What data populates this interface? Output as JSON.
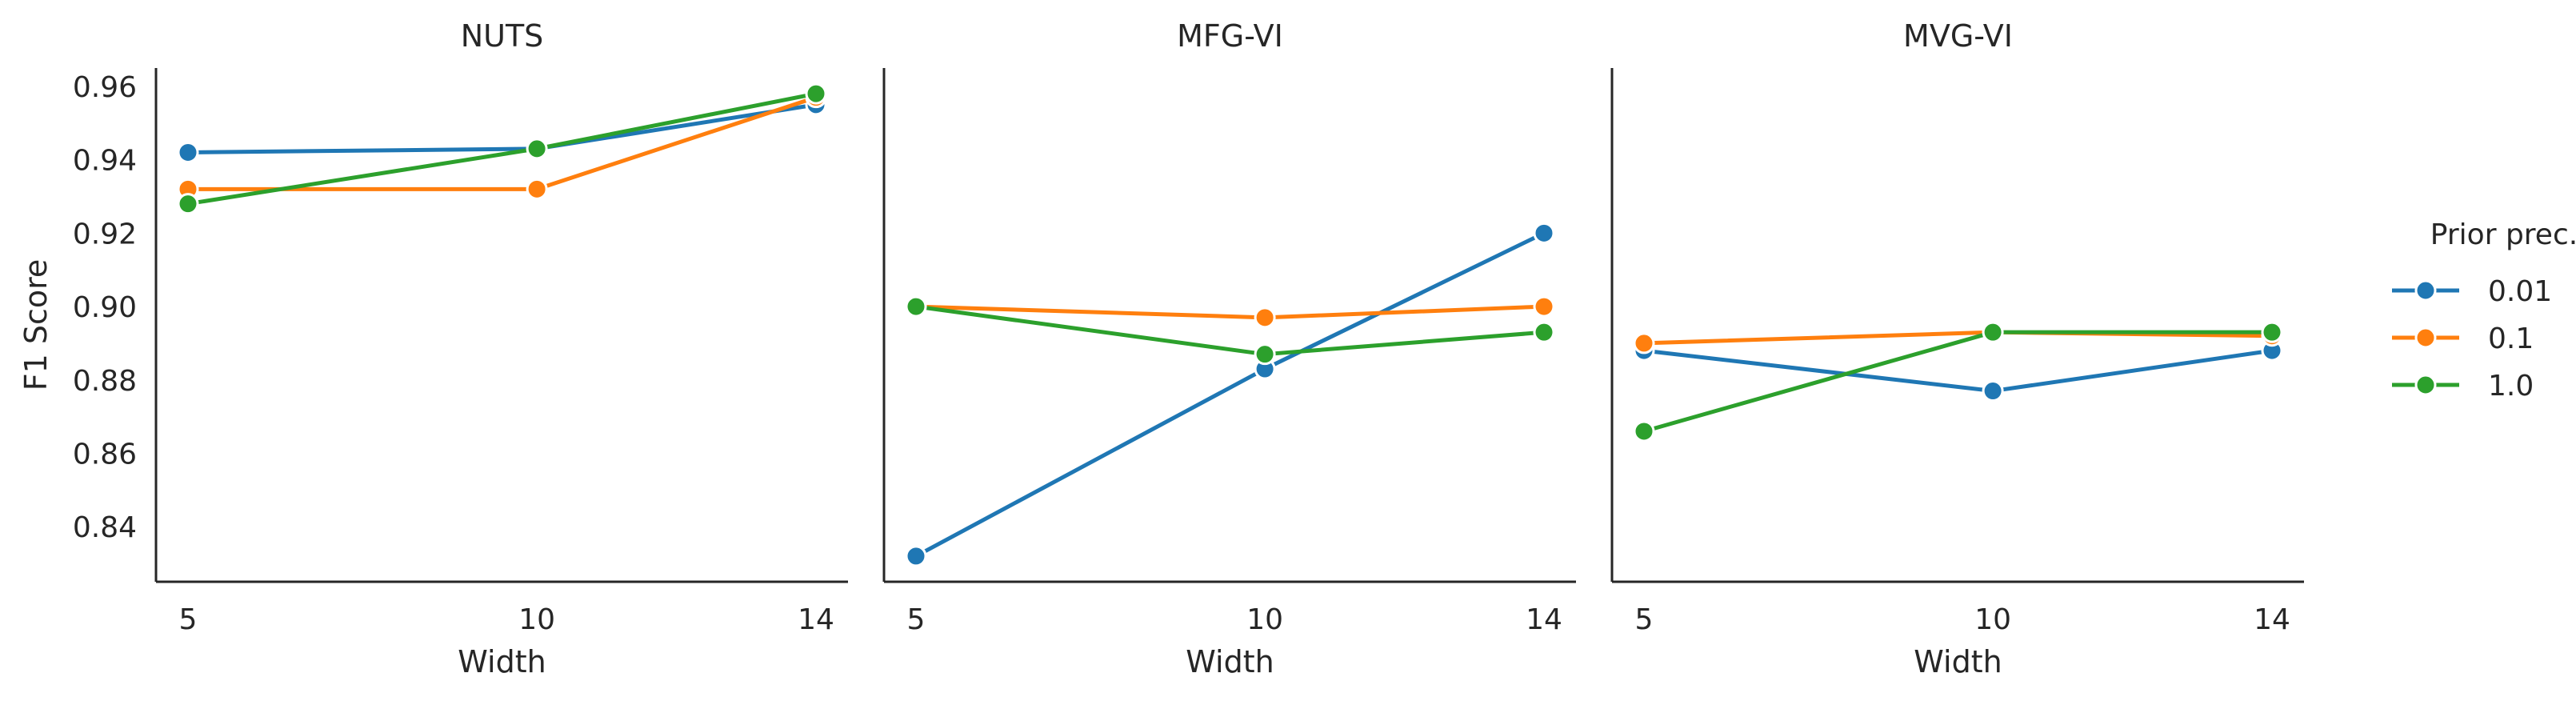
{
  "chart_data": {
    "type": "line",
    "x": [
      5,
      10,
      14
    ],
    "ylabel": "F1 Score",
    "xlabel": "Width",
    "ylim": [
      0.825,
      0.965
    ],
    "yticks": [
      0.84,
      0.86,
      0.88,
      0.9,
      0.92,
      0.94,
      0.96
    ],
    "ytick_labels": [
      "0.84",
      "0.86",
      "0.88",
      "0.90",
      "0.92",
      "0.94",
      "0.96"
    ],
    "xtick_labels": [
      "5",
      "10",
      "14"
    ],
    "grid": false,
    "legend": {
      "title": "Prior prec.",
      "placement": "right",
      "entries": [
        "0.01",
        "0.1",
        "1.0"
      ]
    },
    "colors": {
      "0.01": "#1f77b4",
      "0.1": "#ff7f0e",
      "1.0": "#2ca02c"
    },
    "panels": [
      {
        "title": "NUTS",
        "series": [
          {
            "name": "0.01",
            "values": [
              0.942,
              0.943,
              0.955
            ]
          },
          {
            "name": "0.1",
            "values": [
              0.932,
              0.932,
              0.957
            ]
          },
          {
            "name": "1.0",
            "values": [
              0.928,
              0.943,
              0.958
            ]
          }
        ]
      },
      {
        "title": "MFG-VI",
        "series": [
          {
            "name": "0.01",
            "values": [
              0.832,
              0.883,
              0.92
            ]
          },
          {
            "name": "0.1",
            "values": [
              0.9,
              0.897,
              0.9
            ]
          },
          {
            "name": "1.0",
            "values": [
              0.9,
              0.887,
              0.893
            ]
          }
        ]
      },
      {
        "title": "MVG-VI",
        "series": [
          {
            "name": "0.01",
            "values": [
              0.888,
              0.877,
              0.888
            ]
          },
          {
            "name": "0.1",
            "values": [
              0.89,
              0.893,
              0.892
            ]
          },
          {
            "name": "1.0",
            "values": [
              0.866,
              0.893,
              0.893
            ]
          }
        ]
      }
    ]
  }
}
